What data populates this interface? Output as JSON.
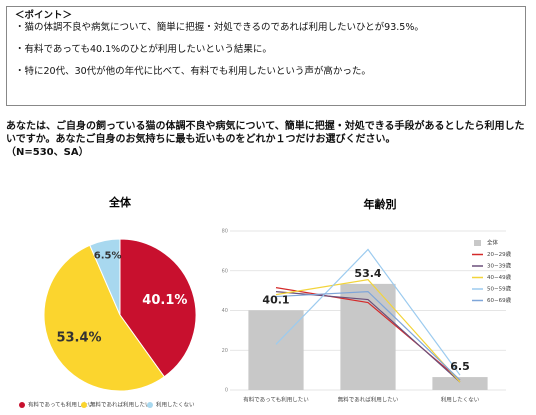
{
  "point": {
    "heading": "＜ポイント＞",
    "items": [
      "・猫の体調不良や病気について、簡単に把握・対処できるのであれば利用したいひとが93.5%。",
      "・有料であっても40.1%のひとが利用したいという結果に。",
      "・特に20代、30代が他の年代に比べて、有料でも利用したいという声が高かった。"
    ]
  },
  "question": {
    "text": "あなたは、ご自身の飼っている猫の体調不良や病気について、簡単に把握・対処できる手段があるとしたら利用したいですか。あなたご自身のお気持ちに最も近いものをどれか１つだけお選びください。",
    "note": "（N=530、SA）"
  },
  "chart_data": [
    {
      "type": "pie",
      "title": "全体",
      "categories": [
        "有料であっても利用したい",
        "無料であれば利用したい",
        "利用したくない"
      ],
      "values": [
        40.1,
        53.4,
        6.5
      ],
      "value_labels": [
        "40.1%",
        "53.4%",
        "6.5%"
      ],
      "colors": [
        "#c8102e",
        "#fbd52e",
        "#a8d8ef"
      ]
    },
    {
      "type": "bar_line",
      "title": "年齢別",
      "categories": [
        "有料であっても利用したい",
        "無料であれば利用したい",
        "利用したくない"
      ],
      "ylim": [
        0,
        80
      ],
      "yticks": [
        0,
        20,
        40,
        60,
        80
      ],
      "grid": true,
      "series": [
        {
          "name": "全体",
          "type": "bar",
          "color": "#c8c8c8",
          "values": [
            40.1,
            53.4,
            6.5
          ]
        },
        {
          "name": "20−29歳",
          "type": "line",
          "color": "#d42a2a",
          "values": [
            51.5,
            44.0,
            5.0
          ]
        },
        {
          "name": "30−39歳",
          "type": "line",
          "color": "#6b4f7a",
          "values": [
            49.5,
            45.5,
            4.0
          ]
        },
        {
          "name": "40−49歳",
          "type": "line",
          "color": "#f2d43a",
          "values": [
            48.0,
            55.5,
            4.0
          ]
        },
        {
          "name": "50−59歳",
          "type": "line",
          "color": "#9ccbef",
          "values": [
            23.0,
            70.7,
            7.5
          ]
        },
        {
          "name": "60−69歳",
          "type": "line",
          "color": "#7fa6d9",
          "values": [
            47.0,
            49.5,
            5.0
          ]
        }
      ]
    }
  ]
}
